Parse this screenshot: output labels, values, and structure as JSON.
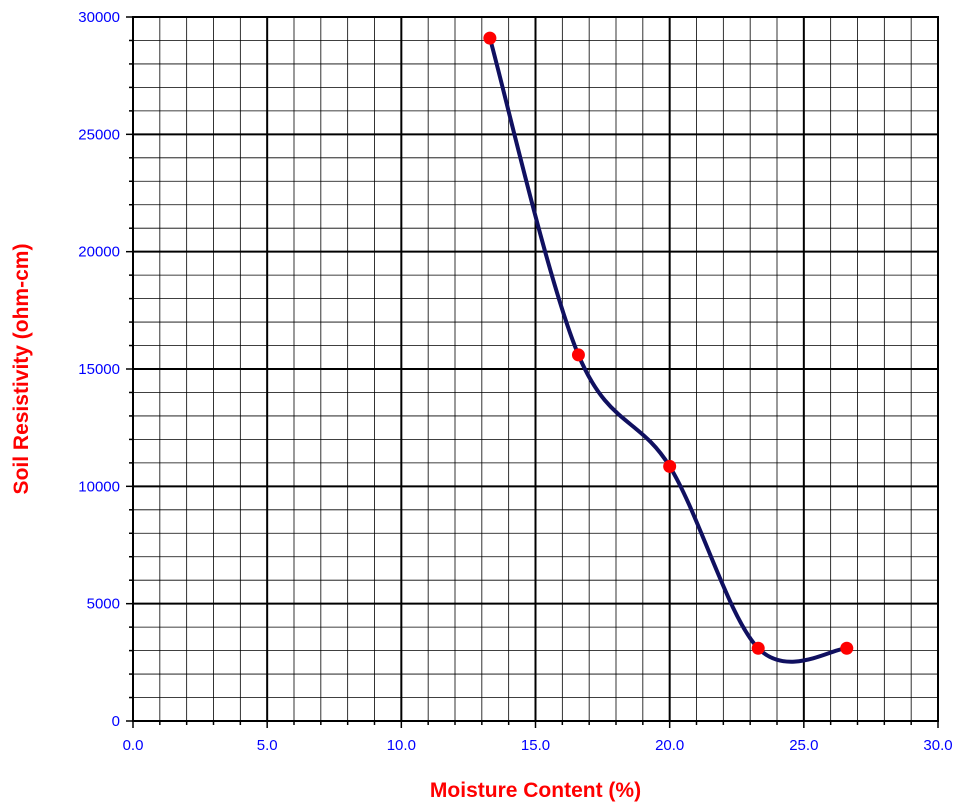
{
  "chart_data": {
    "type": "line",
    "xlabel": "Moisture Content (%)",
    "ylabel": "Soil Resistivity (ohm-cm)",
    "xlim": [
      0,
      30
    ],
    "ylim": [
      0,
      30000
    ],
    "x_tick_labels": [
      "0.0",
      "5.0",
      "10.0",
      "15.0",
      "20.0",
      "25.0",
      "30.0"
    ],
    "y_tick_labels": [
      "0",
      "5000",
      "10000",
      "15000",
      "20000",
      "25000",
      "30000"
    ],
    "grid": true,
    "series": [
      {
        "x": [
          13.3,
          16.6,
          20.0,
          23.3,
          26.6
        ],
        "y": [
          29100,
          15600,
          10850,
          3100,
          3100
        ],
        "smoothed": true,
        "line_color": "#101060",
        "marker_color": "#ff0000"
      }
    ],
    "colors": {
      "tick_text": "#0000ff",
      "axis_title": "#ff0000",
      "grid_major": "#000000",
      "grid_minor": "#000000"
    }
  }
}
